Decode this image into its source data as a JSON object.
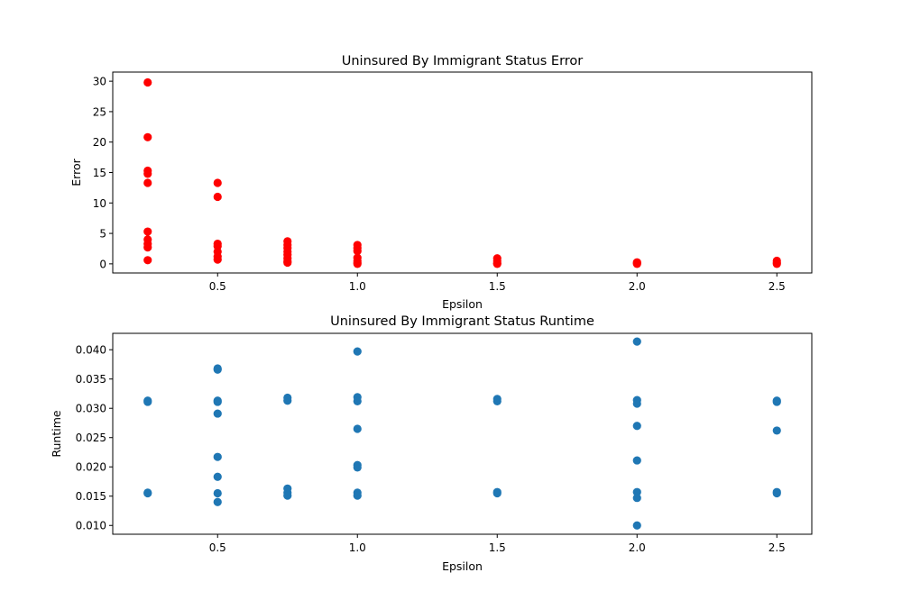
{
  "chart_data": [
    {
      "type": "scatter",
      "title": "Uninsured By Immigrant Status Error",
      "xlabel": "Epsilon",
      "ylabel": "Error",
      "xlim": [
        0.125,
        2.625
      ],
      "ylim": [
        -1.5,
        31.5
      ],
      "xticks": [
        0.5,
        1.0,
        1.5,
        2.0,
        2.5
      ],
      "xtick_labels": [
        "0.5",
        "1.0",
        "1.5",
        "2.0",
        "2.5"
      ],
      "yticks": [
        0,
        5,
        10,
        15,
        20,
        25,
        30
      ],
      "ytick_labels": [
        "0",
        "5",
        "10",
        "15",
        "20",
        "25",
        "30"
      ],
      "grid": false,
      "color": "#ff0000",
      "points": [
        [
          0.25,
          29.8
        ],
        [
          0.25,
          20.8
        ],
        [
          0.25,
          15.3
        ],
        [
          0.25,
          14.8
        ],
        [
          0.25,
          13.3
        ],
        [
          0.25,
          5.3
        ],
        [
          0.25,
          4.0
        ],
        [
          0.25,
          3.3
        ],
        [
          0.25,
          2.7
        ],
        [
          0.25,
          0.6
        ],
        [
          0.5,
          13.3
        ],
        [
          0.5,
          11.0
        ],
        [
          0.5,
          3.3
        ],
        [
          0.5,
          2.9
        ],
        [
          0.5,
          2.0
        ],
        [
          0.5,
          1.2
        ],
        [
          0.5,
          0.7
        ],
        [
          0.75,
          3.7
        ],
        [
          0.75,
          3.1
        ],
        [
          0.75,
          2.6
        ],
        [
          0.75,
          2.0
        ],
        [
          0.75,
          1.5
        ],
        [
          0.75,
          0.9
        ],
        [
          0.75,
          0.4
        ],
        [
          0.75,
          0.2
        ],
        [
          1.0,
          3.1
        ],
        [
          1.0,
          2.6
        ],
        [
          1.0,
          2.1
        ],
        [
          1.0,
          1.0
        ],
        [
          1.0,
          0.5
        ],
        [
          1.0,
          0.2
        ],
        [
          1.0,
          0.0
        ],
        [
          1.5,
          0.9
        ],
        [
          1.5,
          0.5
        ],
        [
          1.5,
          0.1
        ],
        [
          1.5,
          0.0
        ],
        [
          2.0,
          0.25
        ],
        [
          2.0,
          0.1
        ],
        [
          2.0,
          0.0
        ],
        [
          2.5,
          0.5
        ],
        [
          2.5,
          0.2
        ],
        [
          2.5,
          0.0
        ]
      ]
    },
    {
      "type": "scatter",
      "title": "Uninsured By Immigrant Status Runtime",
      "xlabel": "Epsilon",
      "ylabel": "Runtime",
      "xlim": [
        0.125,
        2.625
      ],
      "ylim": [
        0.0085,
        0.0428
      ],
      "xticks": [
        0.5,
        1.0,
        1.5,
        2.0,
        2.5
      ],
      "xtick_labels": [
        "0.5",
        "1.0",
        "1.5",
        "2.0",
        "2.5"
      ],
      "yticks": [
        0.01,
        0.015,
        0.02,
        0.025,
        0.03,
        0.035,
        0.04
      ],
      "ytick_labels": [
        "0.010",
        "0.015",
        "0.020",
        "0.025",
        "0.030",
        "0.035",
        "0.040"
      ],
      "grid": false,
      "color": "#1f77b4",
      "points": [
        [
          0.25,
          0.0313
        ],
        [
          0.25,
          0.0311
        ],
        [
          0.25,
          0.0156
        ],
        [
          0.25,
          0.0155
        ],
        [
          0.5,
          0.0368
        ],
        [
          0.5,
          0.0366
        ],
        [
          0.5,
          0.0313
        ],
        [
          0.5,
          0.0311
        ],
        [
          0.5,
          0.0291
        ],
        [
          0.5,
          0.0217
        ],
        [
          0.5,
          0.0183
        ],
        [
          0.5,
          0.0155
        ],
        [
          0.5,
          0.014
        ],
        [
          0.75,
          0.0318
        ],
        [
          0.75,
          0.0313
        ],
        [
          0.75,
          0.0163
        ],
        [
          0.75,
          0.0156
        ],
        [
          0.75,
          0.0151
        ],
        [
          1.0,
          0.0397
        ],
        [
          1.0,
          0.0319
        ],
        [
          1.0,
          0.0312
        ],
        [
          1.0,
          0.0265
        ],
        [
          1.0,
          0.0203
        ],
        [
          1.0,
          0.0199
        ],
        [
          1.0,
          0.0156
        ],
        [
          1.0,
          0.0151
        ],
        [
          1.5,
          0.0316
        ],
        [
          1.5,
          0.0312
        ],
        [
          1.5,
          0.0157
        ],
        [
          1.5,
          0.0155
        ],
        [
          2.0,
          0.0414
        ],
        [
          2.0,
          0.0314
        ],
        [
          2.0,
          0.0308
        ],
        [
          2.0,
          0.027
        ],
        [
          2.0,
          0.0211
        ],
        [
          2.0,
          0.0157
        ],
        [
          2.0,
          0.0147
        ],
        [
          2.0,
          0.01
        ],
        [
          2.5,
          0.0313
        ],
        [
          2.5,
          0.0311
        ],
        [
          2.5,
          0.0262
        ],
        [
          2.5,
          0.0157
        ],
        [
          2.5,
          0.0155
        ]
      ]
    }
  ]
}
